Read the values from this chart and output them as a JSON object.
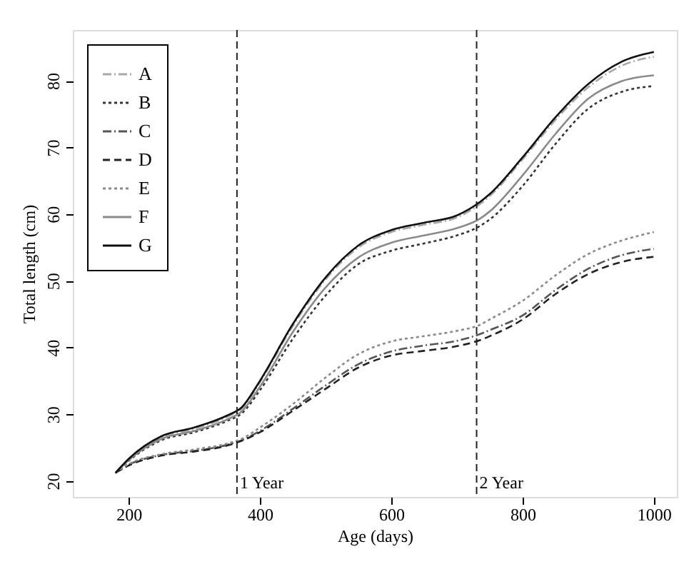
{
  "chart_data": {
    "type": "line",
    "xlabel": "Age (days)",
    "ylabel": "Total length (cm)",
    "x": [
      180,
      200,
      250,
      300,
      350,
      372,
      400,
      450,
      500,
      550,
      600,
      650,
      700,
      735,
      750,
      800,
      850,
      900,
      950,
      1000
    ],
    "series": [
      {
        "name": "A",
        "color": "#a8a8a8",
        "line_style": "dashdot",
        "values": [
          21.2,
          23.2,
          26.5,
          27.8,
          29.6,
          30.8,
          34.8,
          43.2,
          50.2,
          55.0,
          57.3,
          58.4,
          59.5,
          61.5,
          62.7,
          68.2,
          74.1,
          79.0,
          82.2,
          83.6
        ]
      },
      {
        "name": "B",
        "color": "#333333",
        "line_style": "dotted",
        "values": [
          21.2,
          23.0,
          26.1,
          27.3,
          29.0,
          30.1,
          33.6,
          41.3,
          47.8,
          52.5,
          54.5,
          55.6,
          56.8,
          58.2,
          59.2,
          64.2,
          70.5,
          75.8,
          78.3,
          79.2
        ]
      },
      {
        "name": "C",
        "color": "#555555",
        "line_style": "dashdot",
        "values": [
          21.2,
          22.4,
          23.9,
          24.5,
          25.4,
          26.1,
          27.5,
          30.8,
          34.3,
          37.5,
          39.4,
          40.3,
          41.0,
          42.0,
          42.6,
          44.8,
          48.6,
          51.8,
          53.8,
          54.8
        ]
      },
      {
        "name": "D",
        "color": "#222222",
        "line_style": "dashed",
        "values": [
          21.2,
          22.3,
          23.8,
          24.4,
          25.3,
          26.0,
          27.3,
          30.5,
          33.8,
          37.0,
          38.8,
          39.5,
          40.2,
          41.1,
          41.7,
          44.2,
          48.0,
          51.0,
          52.8,
          53.6
        ]
      },
      {
        "name": "E",
        "color": "#8a8a8a",
        "line_style": "dotted",
        "values": [
          21.2,
          22.5,
          24.0,
          24.7,
          25.6,
          26.3,
          28.0,
          31.5,
          35.5,
          39.0,
          40.9,
          41.7,
          42.5,
          43.4,
          44.2,
          47.0,
          50.8,
          54.0,
          56.0,
          57.3
        ]
      },
      {
        "name": "F",
        "color": "#8a8a8a",
        "line_style": "solid",
        "values": [
          21.2,
          23.1,
          26.3,
          27.5,
          29.2,
          30.4,
          34.1,
          42.3,
          49.0,
          53.5,
          55.7,
          56.8,
          57.9,
          59.3,
          60.4,
          65.8,
          72.0,
          77.3,
          79.9,
          80.8
        ]
      },
      {
        "name": "G",
        "color": "#111111",
        "line_style": "solid",
        "values": [
          21.2,
          23.3,
          26.7,
          28.0,
          29.8,
          31.0,
          35.0,
          43.5,
          50.5,
          55.3,
          57.6,
          58.7,
          59.8,
          61.8,
          63.0,
          68.5,
          74.5,
          79.5,
          82.8,
          84.3
        ]
      }
    ],
    "xlim": [
      115,
      1035
    ],
    "ylim": [
      17.6,
      87.6
    ],
    "xticks": [
      200,
      400,
      600,
      800,
      1000
    ],
    "yticks": [
      20,
      30,
      40,
      50,
      60,
      70,
      80
    ],
    "ref_lines": [
      {
        "axis": "x",
        "value": 365,
        "label": "1 Year",
        "line_style": "dashed",
        "color": "#222222"
      },
      {
        "axis": "x",
        "value": 730,
        "label": "2 Year",
        "line_style": "dashed",
        "color": "#222222"
      }
    ],
    "legend": "top left",
    "grid": false
  }
}
